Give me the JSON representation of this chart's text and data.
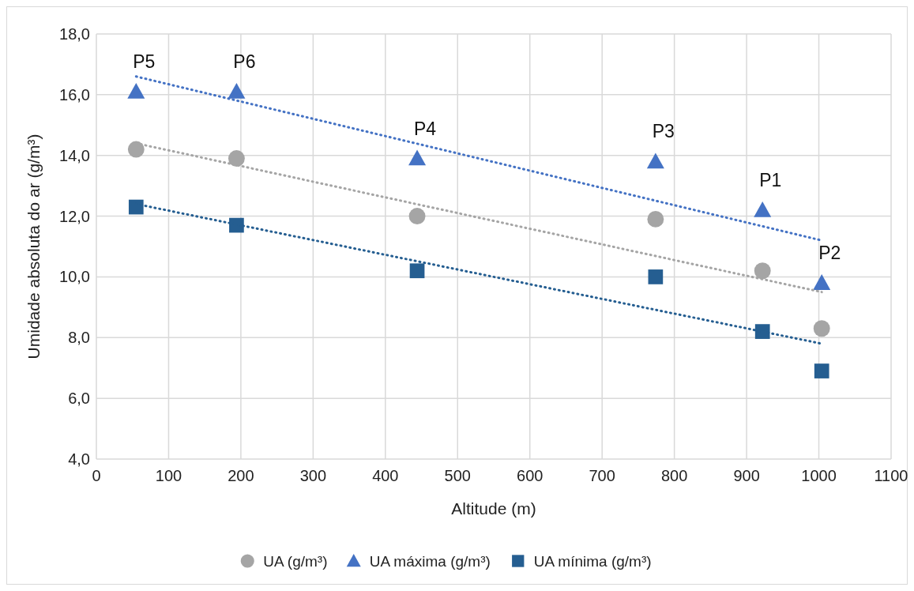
{
  "chart_data": {
    "type": "scatter",
    "xlabel": "Altitude (m)",
    "ylabel": "Umidade absoluta do ar (g/m³)",
    "xlim": [
      0,
      1100
    ],
    "xticks": [
      0,
      100,
      200,
      300,
      400,
      500,
      600,
      700,
      800,
      900,
      1000,
      1100
    ],
    "ylim": [
      4,
      18
    ],
    "yticks": [
      {
        "value": 4,
        "label": "4,0"
      },
      {
        "value": 6,
        "label": "6,0"
      },
      {
        "value": 8,
        "label": "8,0"
      },
      {
        "value": 10,
        "label": "10,0"
      },
      {
        "value": 12,
        "label": "12,0"
      },
      {
        "value": 14,
        "label": "14,0"
      },
      {
        "value": 16,
        "label": "16,0"
      },
      {
        "value": 18,
        "label": "18,0"
      }
    ],
    "grid": true,
    "legend": "bottom",
    "series": [
      {
        "name": "UA (g/m³)",
        "marker": "circle",
        "color": "#a5a5a5",
        "x": [
          55,
          194,
          444,
          774,
          922,
          1004
        ],
        "values": [
          14.2,
          13.9,
          12.0,
          11.9,
          10.2,
          8.3
        ]
      },
      {
        "name": "UA máxima (g/m³)",
        "marker": "triangle",
        "color": "#4472c4",
        "x": [
          55,
          194,
          444,
          774,
          922,
          1004
        ],
        "values": [
          16.1,
          16.1,
          13.9,
          13.8,
          12.2,
          9.8
        ]
      },
      {
        "name": "UA mínima (g/m³)",
        "marker": "square",
        "color": "#255e91",
        "x": [
          55,
          194,
          444,
          774,
          922,
          1004
        ],
        "values": [
          12.3,
          11.7,
          10.2,
          10.0,
          8.2,
          6.9
        ]
      },
      {
        "type": "line",
        "line_style": "dotted",
        "color": "#a5a5a5",
        "x": [
          55,
          1004
        ],
        "values": [
          14.4,
          9.5
        ]
      },
      {
        "type": "line",
        "line_style": "dotted",
        "color": "#4472c4",
        "x": [
          55,
          1004
        ],
        "values": [
          16.6,
          11.2
        ]
      },
      {
        "type": "line",
        "line_style": "dotted",
        "color": "#255e91",
        "x": [
          55,
          1004
        ],
        "values": [
          12.4,
          7.8
        ]
      }
    ],
    "annotations": [
      {
        "text": "P5",
        "x": 55,
        "y": 16.1
      },
      {
        "text": "P6",
        "x": 194,
        "y": 16.1
      },
      {
        "text": "P4",
        "x": 444,
        "y": 13.9
      },
      {
        "text": "P3",
        "x": 774,
        "y": 13.8
      },
      {
        "text": "P1",
        "x": 922,
        "y": 12.2
      },
      {
        "text": "P2",
        "x": 1004,
        "y": 9.8
      }
    ]
  }
}
